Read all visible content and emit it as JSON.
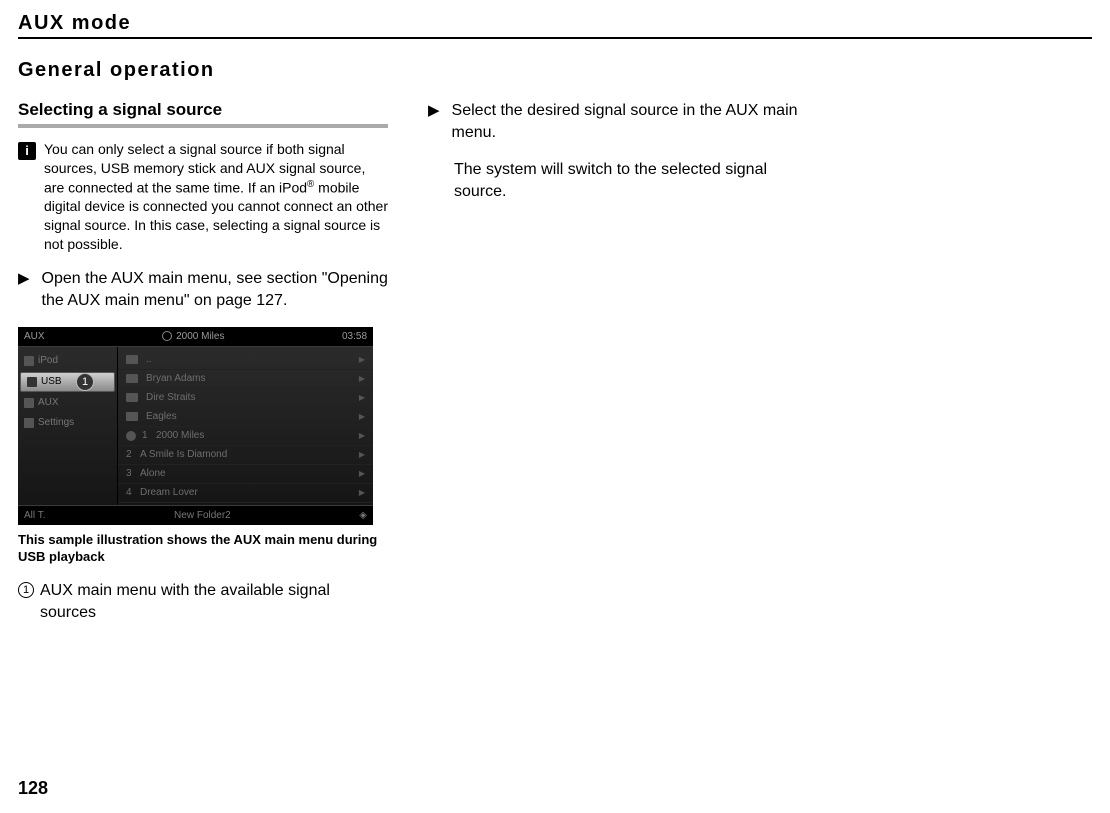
{
  "heading": "AUX mode",
  "section": "General operation",
  "subheading": "Selecting a signal source",
  "info": {
    "icon_label": "i",
    "text_pre": "You can only select a signal source if both signal sources, USB memory stick and AUX signal source, are connected at the same time. If an iPod",
    "reg": "®",
    "text_post": " mobile digital device is connected you cannot connect an other signal source. In this case, selecting a signal source is not possible."
  },
  "step1": "Open the AUX main menu, see section \"Opening the AUX main menu\" on page 127.",
  "step2": "Select the desired signal source in the AUX main menu.",
  "step2_result": "The system will switch to the selected signal source.",
  "screenshot": {
    "top_left": "AUX",
    "top_title": "2000 Miles",
    "top_time": "03:58",
    "sidebar": {
      "items": [
        {
          "label": "iPod",
          "selected": false
        },
        {
          "label": "USB",
          "selected": true
        },
        {
          "label": "AUX",
          "selected": false
        },
        {
          "label": "Settings",
          "selected": false
        }
      ]
    },
    "list": {
      "folders": [
        "..",
        "Bryan Adams",
        "Dire Straits",
        "Eagles"
      ],
      "tracks": [
        {
          "n": "1",
          "title": "2000 Miles"
        },
        {
          "n": "2",
          "title": "A Smile Is Diamond"
        },
        {
          "n": "3",
          "title": "Alone"
        },
        {
          "n": "4",
          "title": "Dream Lover"
        }
      ]
    },
    "bottom_left": "All T.",
    "bottom_center": "New Folder2",
    "callout": "1"
  },
  "caption": "This sample illustration shows the AUX main menu during USB playback",
  "legend": {
    "num": "1",
    "text": "AUX main menu with the available signal sources"
  },
  "page_number": "128",
  "marker": "▶"
}
